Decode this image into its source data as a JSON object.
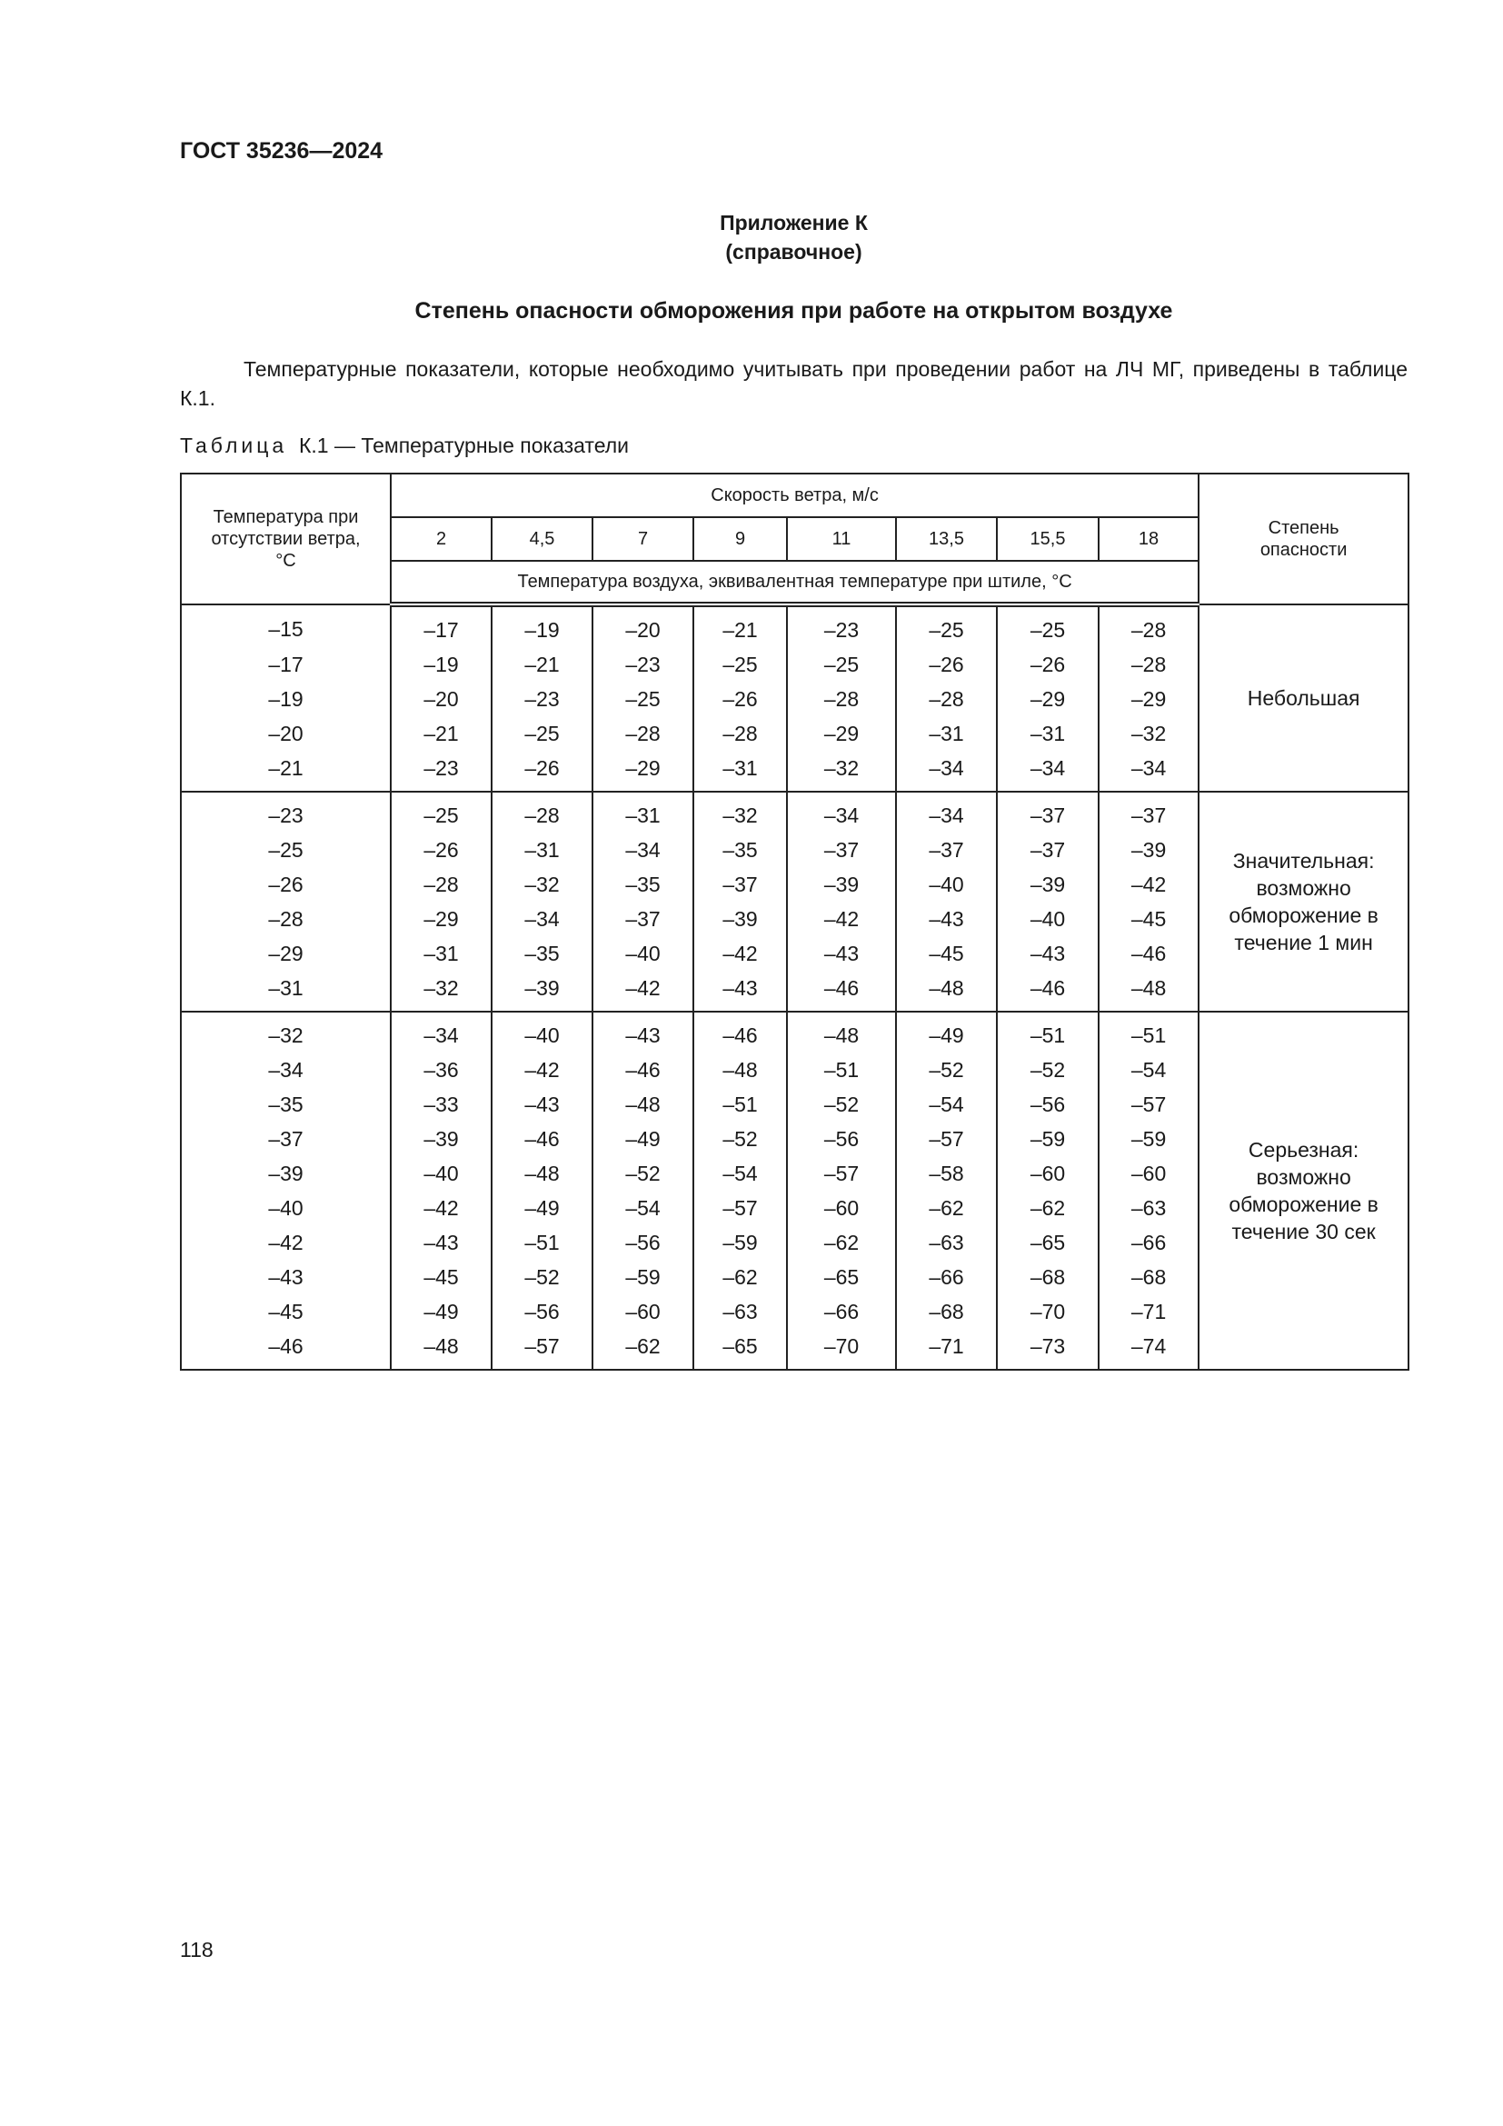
{
  "document": {
    "code": "ГОСТ 35236—2024",
    "page_number": "118"
  },
  "appendix": {
    "title": "Приложение К",
    "subtitle": "(справочное)"
  },
  "section_title": "Степень опасности обморожения при работе на открытом воздухе",
  "paragraph": "Температурные показатели, которые необходимо учитывать при проведении работ на ЛЧ МГ, приведены в таблице К.1.",
  "caption": {
    "prefix": "Таблица",
    "text": "К.1 — Температурные показатели"
  },
  "table": {
    "header_left": "Температура при отсутствии ветра, °С",
    "header_wind": "Скорость ветра, м/с",
    "wind_speeds": [
      "2",
      "4,5",
      "7",
      "9",
      "11",
      "13,5",
      "15,5",
      "18"
    ],
    "header_equiv": "Температура воздуха, эквивалентная температуре при штиле, °С",
    "header_right": "Степень опасности",
    "groups": [
      {
        "degree": "Небольшая",
        "rows": [
          [
            "–15",
            "–17",
            "–19",
            "–20",
            "–21",
            "–23",
            "–25",
            "–25",
            "–28"
          ],
          [
            "–17",
            "–19",
            "–21",
            "–23",
            "–25",
            "–25",
            "–26",
            "–26",
            "–28"
          ],
          [
            "–19",
            "–20",
            "–23",
            "–25",
            "–26",
            "–28",
            "–28",
            "–29",
            "–29"
          ],
          [
            "–20",
            "–21",
            "–25",
            "–28",
            "–28",
            "–29",
            "–31",
            "–31",
            "–32"
          ],
          [
            "–21",
            "–23",
            "–26",
            "–29",
            "–31",
            "–32",
            "–34",
            "–34",
            "–34"
          ]
        ]
      },
      {
        "degree": "Значительная: возможно обморожение в течение 1 мин",
        "rows": [
          [
            "–23",
            "–25",
            "–28",
            "–31",
            "–32",
            "–34",
            "–34",
            "–37",
            "–37"
          ],
          [
            "–25",
            "–26",
            "–31",
            "–34",
            "–35",
            "–37",
            "–37",
            "–37",
            "–39"
          ],
          [
            "–26",
            "–28",
            "–32",
            "–35",
            "–37",
            "–39",
            "–40",
            "–39",
            "–42"
          ],
          [
            "–28",
            "–29",
            "–34",
            "–37",
            "–39",
            "–42",
            "–43",
            "–40",
            "–45"
          ],
          [
            "–29",
            "–31",
            "–35",
            "–40",
            "–42",
            "–43",
            "–45",
            "–43",
            "–46"
          ],
          [
            "–31",
            "–32",
            "–39",
            "–42",
            "–43",
            "–46",
            "–48",
            "–46",
            "–48"
          ]
        ]
      },
      {
        "degree": "Серьезная: возможно обморожение в течение 30 сек",
        "rows": [
          [
            "–32",
            "–34",
            "–40",
            "–43",
            "–46",
            "–48",
            "–49",
            "–51",
            "–51"
          ],
          [
            "–34",
            "–36",
            "–42",
            "–46",
            "–48",
            "–51",
            "–52",
            "–52",
            "–54"
          ],
          [
            "–35",
            "–33",
            "–43",
            "–48",
            "–51",
            "–52",
            "–54",
            "–56",
            "–57"
          ],
          [
            "–37",
            "–39",
            "–46",
            "–49",
            "–52",
            "–56",
            "–57",
            "–59",
            "–59"
          ],
          [
            "–39",
            "–40",
            "–48",
            "–52",
            "–54",
            "–57",
            "–58",
            "–60",
            "–60"
          ],
          [
            "–40",
            "–42",
            "–49",
            "–54",
            "–57",
            "–60",
            "–62",
            "–62",
            "–63"
          ],
          [
            "–42",
            "–43",
            "–51",
            "–56",
            "–59",
            "–62",
            "–63",
            "–65",
            "–66"
          ],
          [
            "–43",
            "–45",
            "–52",
            "–59",
            "–62",
            "–65",
            "–66",
            "–68",
            "–68"
          ],
          [
            "–45",
            "–49",
            "–56",
            "–60",
            "–63",
            "–66",
            "–68",
            "–70",
            "–71"
          ],
          [
            "–46",
            "–48",
            "–57",
            "–62",
            "–65",
            "–70",
            "–71",
            "–73",
            "–74"
          ]
        ]
      }
    ]
  }
}
